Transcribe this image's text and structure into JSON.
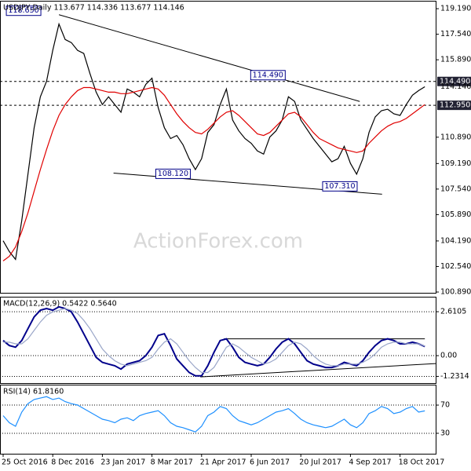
{
  "watermark": "ActionForex.com",
  "chart_data": [
    {
      "type": "line",
      "title": "USDJPY,Daily 113.677 114.336 113.677 114.146",
      "ylim": [
        100.84,
        119.7
      ],
      "yticks": [
        {
          "value": 119.19,
          "label": "119.190"
        },
        {
          "value": 117.54,
          "label": "117.540"
        },
        {
          "value": 115.89,
          "label": "115.890"
        },
        {
          "value": 110.89,
          "label": "110.890"
        },
        {
          "value": 109.19,
          "label": "109.190"
        },
        {
          "value": 107.54,
          "label": "107.540"
        },
        {
          "value": 105.89,
          "label": "105.890"
        },
        {
          "value": 104.19,
          "label": "104.190"
        },
        {
          "value": 102.54,
          "label": "102.540"
        },
        {
          "value": 100.89,
          "label": "100.890"
        }
      ],
      "levels": [
        {
          "value": 114.49,
          "label": "114.490"
        },
        {
          "value": 112.95,
          "label": "112.950"
        }
      ],
      "series": [
        {
          "color": "#000000",
          "values": [
            104.2,
            103.5,
            103.0,
            105.5,
            108.5,
            111.5,
            113.5,
            114.5,
            116.5,
            118.2,
            117.2,
            117.0,
            116.5,
            116.3,
            115.0,
            113.8,
            113.0,
            113.5,
            113.0,
            112.5,
            114.0,
            113.8,
            113.5,
            114.3,
            114.7,
            112.8,
            111.5,
            110.8,
            111.0,
            110.4,
            109.5,
            108.8,
            109.5,
            111.2,
            111.7,
            113.0,
            114.0,
            112.0,
            111.3,
            110.8,
            110.5,
            110.0,
            109.8,
            110.9,
            111.3,
            112.0,
            113.5,
            113.2,
            112.0,
            111.4,
            110.8,
            110.3,
            109.8,
            109.3,
            109.5,
            110.3,
            109.2,
            108.5,
            109.5,
            111.2,
            112.2,
            112.6,
            112.7,
            112.4,
            112.3,
            113.0,
            113.6,
            113.9,
            114.146
          ]
        },
        {
          "color": "#e00000",
          "values": [
            102.9,
            103.2,
            103.8,
            104.8,
            106.0,
            107.4,
            108.8,
            110.1,
            111.3,
            112.3,
            113.0,
            113.5,
            113.9,
            114.1,
            114.1,
            114.0,
            113.9,
            113.8,
            113.8,
            113.7,
            113.7,
            113.8,
            113.9,
            114.0,
            114.1,
            114.0,
            113.6,
            113.0,
            112.4,
            111.9,
            111.5,
            111.2,
            111.1,
            111.4,
            111.8,
            112.2,
            112.5,
            112.6,
            112.3,
            111.9,
            111.5,
            111.1,
            111.0,
            111.2,
            111.6,
            112.0,
            112.4,
            112.5,
            112.2,
            111.7,
            111.2,
            110.8,
            110.6,
            110.4,
            110.2,
            110.1,
            110.0,
            109.9,
            110.0,
            110.5,
            110.9,
            111.3,
            111.6,
            111.8,
            111.9,
            112.1,
            112.4,
            112.7,
            113.0
          ]
        }
      ],
      "trendlines": [
        {
          "x": [
            9,
            57.5
          ],
          "y": [
            118.8,
            113.2
          ]
        },
        {
          "x": [
            17.8,
            61.1
          ],
          "y": [
            108.57,
            107.21
          ]
        }
      ],
      "annotations": [
        {
          "label": "118.650",
          "value": 118.65,
          "x": 3.3
        },
        {
          "label": "114.490",
          "value": 114.49,
          "x": 42.7
        },
        {
          "label": "108.120",
          "value": 108.12,
          "x": 27.4
        },
        {
          "label": "107.310",
          "value": 107.31,
          "x": 54.3
        }
      ]
    },
    {
      "type": "line",
      "title": "MACD(12,26,9) 0.5422 0.5640",
      "ylim": [
        -1.63,
        3.5
      ],
      "yticks": [
        2.6105,
        {
          "value": 0,
          "label": "0.00"
        },
        -1.2314
      ],
      "series": [
        {
          "color": "#00008b",
          "values": [
            0.9,
            0.6,
            0.5,
            0.9,
            1.6,
            2.3,
            2.7,
            2.8,
            2.7,
            2.9,
            2.8,
            2.6,
            2.0,
            1.3,
            0.6,
            -0.1,
            -0.4,
            -0.5,
            -0.6,
            -0.8,
            -0.5,
            -0.4,
            -0.3,
            0.0,
            0.5,
            1.2,
            1.3,
            0.6,
            -0.2,
            -0.6,
            -1.0,
            -1.2,
            -1.2,
            -0.6,
            0.2,
            0.9,
            1.0,
            0.5,
            -0.1,
            -0.4,
            -0.5,
            -0.6,
            -0.5,
            -0.1,
            0.4,
            0.8,
            1.0,
            0.7,
            0.2,
            -0.3,
            -0.5,
            -0.6,
            -0.7,
            -0.7,
            -0.6,
            -0.4,
            -0.5,
            -0.6,
            -0.3,
            0.2,
            0.6,
            0.9,
            1.0,
            0.9,
            0.7,
            0.7,
            0.8,
            0.7,
            0.5422
          ]
        },
        {
          "color": "#9aa6c8",
          "values": [
            0.8,
            0.8,
            0.7,
            0.7,
            1.0,
            1.5,
            2.0,
            2.4,
            2.6,
            2.7,
            2.8,
            2.7,
            2.5,
            2.1,
            1.6,
            1.0,
            0.4,
            0.0,
            -0.3,
            -0.5,
            -0.6,
            -0.5,
            -0.4,
            -0.3,
            -0.1,
            0.4,
            0.8,
            1.0,
            0.7,
            0.2,
            -0.3,
            -0.7,
            -1.0,
            -1.0,
            -0.7,
            -0.1,
            0.5,
            0.7,
            0.5,
            0.2,
            -0.1,
            -0.3,
            -0.5,
            -0.4,
            -0.2,
            0.2,
            0.6,
            0.8,
            0.7,
            0.4,
            0.0,
            -0.3,
            -0.5,
            -0.6,
            -0.6,
            -0.5,
            -0.5,
            -0.5,
            -0.4,
            -0.2,
            0.1,
            0.5,
            0.7,
            0.8,
            0.8,
            0.7,
            0.7,
            0.7,
            0.564
          ]
        }
      ],
      "trendlines": [
        {
          "x": [
            35.6,
            68
          ],
          "y": [
            1.0,
            1.0
          ]
        },
        {
          "x": [
            31.8,
            69.8
          ],
          "y": [
            -1.26,
            -0.47
          ]
        }
      ]
    },
    {
      "type": "line",
      "title": "RSI(14) 61.8160",
      "ylim": [
        1,
        99
      ],
      "yticks": [
        70,
        30
      ],
      "x": [
        "25 Oct 2016",
        null,
        null,
        null,
        null,
        null,
        null,
        null,
        "8 Dec 2016",
        null,
        null,
        null,
        null,
        null,
        null,
        null,
        "23 Jan 2017",
        null,
        null,
        null,
        null,
        null,
        null,
        null,
        "8 Mar 2017",
        null,
        null,
        null,
        null,
        null,
        null,
        null,
        "21 Apr 2017",
        null,
        null,
        null,
        null,
        null,
        null,
        null,
        "6 Jun 2017",
        null,
        null,
        null,
        null,
        null,
        null,
        null,
        "20 Jul 2017",
        null,
        null,
        null,
        null,
        null,
        null,
        null,
        "4 Sep 2017",
        null,
        null,
        null,
        null,
        null,
        null,
        null,
        "18 Oct 2017",
        null,
        null,
        null,
        null
      ],
      "series": [
        {
          "color": "#1e90ff",
          "values": [
            55,
            45,
            40,
            60,
            72,
            78,
            80,
            82,
            78,
            80,
            75,
            72,
            70,
            65,
            60,
            55,
            50,
            48,
            45,
            50,
            52,
            48,
            55,
            58,
            60,
            62,
            55,
            45,
            40,
            38,
            35,
            32,
            40,
            55,
            60,
            68,
            65,
            55,
            48,
            45,
            42,
            45,
            50,
            55,
            60,
            62,
            65,
            58,
            50,
            45,
            42,
            40,
            38,
            40,
            45,
            50,
            42,
            38,
            45,
            58,
            62,
            68,
            65,
            58,
            60,
            65,
            68,
            60,
            61.816
          ]
        }
      ]
    }
  ]
}
